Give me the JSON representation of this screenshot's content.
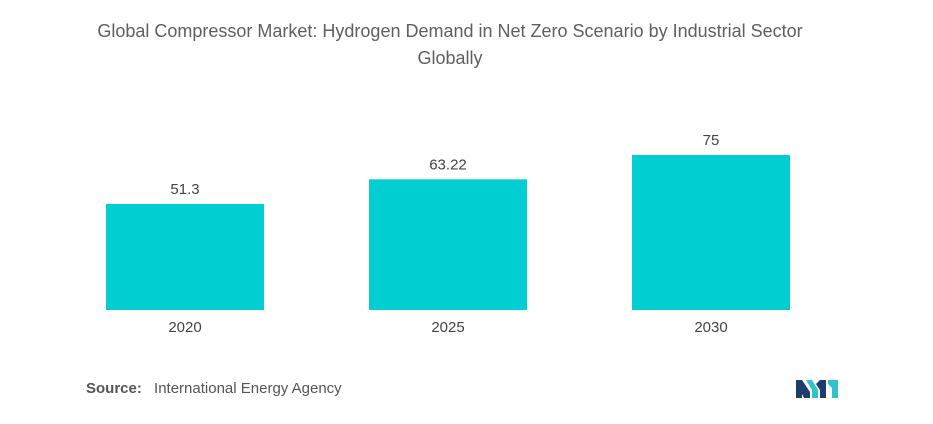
{
  "chart_data": {
    "type": "bar",
    "title_line1": "Global Compressor Market: Hydrogen Demand in Net Zero Scenario by Industrial Sector",
    "title_line2": "Globally",
    "categories": [
      "2020",
      "2025",
      "2030"
    ],
    "values": [
      51.3,
      63.22,
      75
    ],
    "value_labels": [
      "51.3",
      "63.22",
      "75"
    ],
    "xlabel": "",
    "ylabel": "",
    "ylim": [
      0,
      75
    ],
    "grid": false,
    "legend": "none",
    "bar_color": "#00CED1"
  },
  "source": {
    "label": "Source:",
    "text": "International Energy Agency"
  },
  "logo": {
    "icon": "mordor-intelligence-logo-icon",
    "colors": [
      "#1f3c6e",
      "#2ec4c8"
    ]
  }
}
